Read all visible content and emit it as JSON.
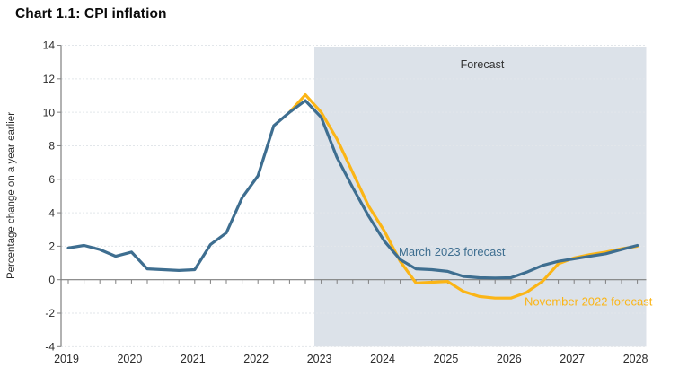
{
  "page": {
    "title": "Chart 1.1: CPI inflation"
  },
  "chart_data": {
    "type": "line",
    "title": "Chart 1.1: CPI inflation",
    "ylabel": "Percentage change on a year earlier",
    "ylim": [
      -4,
      14
    ],
    "y_ticks": [
      14,
      12,
      10,
      8,
      6,
      4,
      2,
      0,
      -2,
      -4
    ],
    "x_ticks": [
      "2019",
      "2020",
      "2021",
      "2022",
      "2023",
      "2024",
      "2025",
      "2026",
      "2027",
      "2028"
    ],
    "frequency": "quarterly",
    "x_start": "2019 Q1",
    "x_end": "2028 Q1",
    "forecast_shading_start": "2023 Q1",
    "grid": "horizontal-dotted",
    "legend_position": "inline-labels",
    "annotations": {
      "forecast_label": "Forecast"
    },
    "series": [
      {
        "name": "March 2023 forecast",
        "color": "#3E6E90",
        "start": "2019 Q1",
        "start_index": 0,
        "values": [
          1.9,
          2.05,
          1.8,
          1.4,
          1.65,
          0.65,
          0.6,
          0.55,
          0.6,
          2.1,
          2.8,
          4.9,
          6.2,
          9.2,
          10.0,
          10.7,
          9.7,
          7.3,
          5.5,
          3.8,
          2.3,
          1.2,
          0.65,
          0.6,
          0.5,
          0.2,
          0.12,
          0.1,
          0.12,
          0.45,
          0.85,
          1.1,
          1.25,
          1.4,
          1.55,
          1.8,
          2.05
        ]
      },
      {
        "name": "November 2022 forecast",
        "color": "#FBB516",
        "start": "2022 Q3",
        "start_index": 14,
        "values": [
          10.0,
          11.05,
          10.0,
          8.4,
          6.4,
          4.4,
          2.9,
          1.1,
          -0.2,
          -0.15,
          -0.1,
          -0.7,
          -1.0,
          -1.1,
          -1.1,
          -0.75,
          -0.1,
          0.95,
          1.3,
          1.5,
          1.65,
          1.85,
          2.0
        ]
      }
    ],
    "colors": {
      "forecast_shade": "#DCE2E9",
      "axis": "#7F7F7F",
      "grid": "#E2E6EA",
      "tick_text": "#2B2B2B",
      "title_text": "#0B0B0B"
    }
  }
}
